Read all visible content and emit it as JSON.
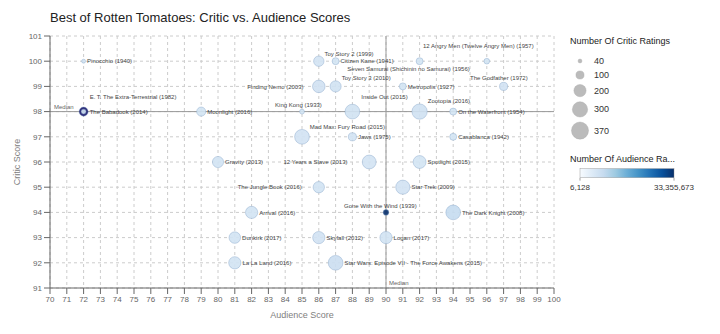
{
  "chart_data": {
    "type": "scatter",
    "title": "Best of Rotten Tomatoes: Critic vs. Audience Scores",
    "x_label": "Audience Score",
    "y_label": "Critic Score",
    "xlim": [
      70,
      100
    ],
    "xticks": [
      70,
      71,
      72,
      73,
      74,
      75,
      76,
      77,
      78,
      79,
      80,
      81,
      82,
      83,
      84,
      85,
      86,
      87,
      88,
      89,
      90,
      91,
      92,
      93,
      94,
      95,
      96,
      97,
      98,
      99,
      100
    ],
    "ylim": [
      91,
      101
    ],
    "yticks": [
      91,
      92,
      93,
      94,
      95,
      96,
      97,
      98,
      99,
      100,
      101
    ],
    "grid": true,
    "reference_lines": [
      {
        "axis": "y",
        "value": 98,
        "label": "Median",
        "color": "#999999"
      },
      {
        "axis": "x",
        "value": 90,
        "label": "Median",
        "color": "#999999"
      }
    ],
    "points": [
      {
        "x": 72,
        "y": 100,
        "label": "Pinocchio (1940)",
        "size": 40,
        "color_value": 6128
      },
      {
        "x": 72,
        "y": 98,
        "label": "E. T. The Extra-Terrestrial (1982)",
        "size": 120,
        "color_value": 1200000,
        "color": "#1a1a6e"
      },
      {
        "x": 72,
        "y": 98,
        "label": "The Babadook (2014)",
        "size": 50,
        "color_value": 20000
      },
      {
        "x": 79,
        "y": 98,
        "label": "Moonlight (2016)",
        "size": 120,
        "color_value": 80000
      },
      {
        "x": 80,
        "y": 96,
        "label": "Gravity (2013)",
        "size": 170,
        "color_value": 350000
      },
      {
        "x": 82,
        "y": 94,
        "label": "Arrival (2016)",
        "size": 200,
        "color_value": 300000
      },
      {
        "x": 81,
        "y": 93,
        "label": "Dunkirk (2017)",
        "size": 180,
        "color_value": 250000
      },
      {
        "x": 81,
        "y": 92,
        "label": "La La Land (2016)",
        "size": 200,
        "color_value": 400000
      },
      {
        "x": 85,
        "y": 98,
        "label": "King Kong (1933)",
        "size": 50,
        "color_value": 12000
      },
      {
        "x": 85,
        "y": 97,
        "label": "Mad Max: Fury Road (2015)",
        "size": 280,
        "color_value": 500000
      },
      {
        "x": 86,
        "y": 95,
        "label": "The Jungle Book (2016)",
        "size": 175,
        "color_value": 350000
      },
      {
        "x": 86,
        "y": 93,
        "label": "Skyfall (2012)",
        "size": 200,
        "color_value": 600000
      },
      {
        "x": 87,
        "y": 92,
        "label": "Star Wars: Episode VII - The Force Awakens (2015)",
        "size": 280,
        "color_value": 1800000
      },
      {
        "x": 86,
        "y": 100,
        "label": "Toy Story 2 (1999)",
        "size": 150,
        "color_value": 200000
      },
      {
        "x": 86,
        "y": 99,
        "label": "Finding Nemo (2003)",
        "size": 210,
        "color_value": 800000
      },
      {
        "x": 87,
        "y": 99,
        "label": "Toy Story 3 (2010)",
        "size": 170,
        "color_value": 700000
      },
      {
        "x": 88,
        "y": 97,
        "label": "Jaws (1975)",
        "size": 100,
        "color_value": 200000
      },
      {
        "x": 88,
        "y": 98,
        "label": "Inside Out (2015)",
        "size": 280,
        "color_value": 700000
      },
      {
        "x": 89,
        "y": 96,
        "label": "12 Years a Slave (2013)",
        "size": 250,
        "color_value": 180000
      },
      {
        "x": 92,
        "y": 96,
        "label": "Spotlight (2015)",
        "size": 220,
        "color_value": 120000
      },
      {
        "x": 90,
        "y": 94,
        "label": "Gone With the Wind (1939)",
        "size": 60,
        "color_value": 33355673
      },
      {
        "x": 94,
        "y": 94,
        "label": "The Dark Knight (2008)",
        "size": 280,
        "color_value": 3000000
      },
      {
        "x": 90,
        "y": 93,
        "label": "Logan (2017)",
        "size": 200,
        "color_value": 350000
      },
      {
        "x": 87,
        "y": 100,
        "label": "Citizen Kane (1941)",
        "size": 80,
        "color_value": 60000
      },
      {
        "x": 91,
        "y": 99,
        "label": "Metropolis (1927)",
        "size": 80,
        "color_value": 25000
      },
      {
        "x": 92,
        "y": 98,
        "label": "Zootopia (2016)",
        "size": 300,
        "color_value": 1000000
      },
      {
        "x": 94,
        "y": 98,
        "label": "On the Waterfront (1954)",
        "size": 80,
        "color_value": 18000
      },
      {
        "x": 94,
        "y": 97,
        "label": "Casablanca (1942)",
        "size": 80,
        "color_value": 50000
      },
      {
        "x": 92,
        "y": 100,
        "label": "Seven Samurai (Shichinin no Samurai) (1956)",
        "size": 80,
        "color_value": 30000
      },
      {
        "x": 96,
        "y": 100,
        "label": "12 Angry Men (Twelve Angry Men) (1957)",
        "size": 60,
        "color_value": 80000
      },
      {
        "x": 97,
        "y": 99,
        "label": "The Godfather (1972)",
        "size": 100,
        "color_value": 600000
      },
      {
        "x": 91,
        "y": 95,
        "label": "Star Trek (2009)",
        "size": 260,
        "color_value": 500000
      }
    ],
    "size_legend": {
      "title": "Number Of Critic Ratings",
      "values": [
        40,
        100,
        200,
        300,
        370
      ]
    },
    "color_bar": {
      "title": "Number Of Audience Ra...",
      "range": [
        6128,
        33355673
      ],
      "ticks": [
        {
          "value": 6128,
          "label": "6,128"
        },
        {
          "value": 33355673,
          "label": "33,355,673"
        }
      ]
    }
  }
}
